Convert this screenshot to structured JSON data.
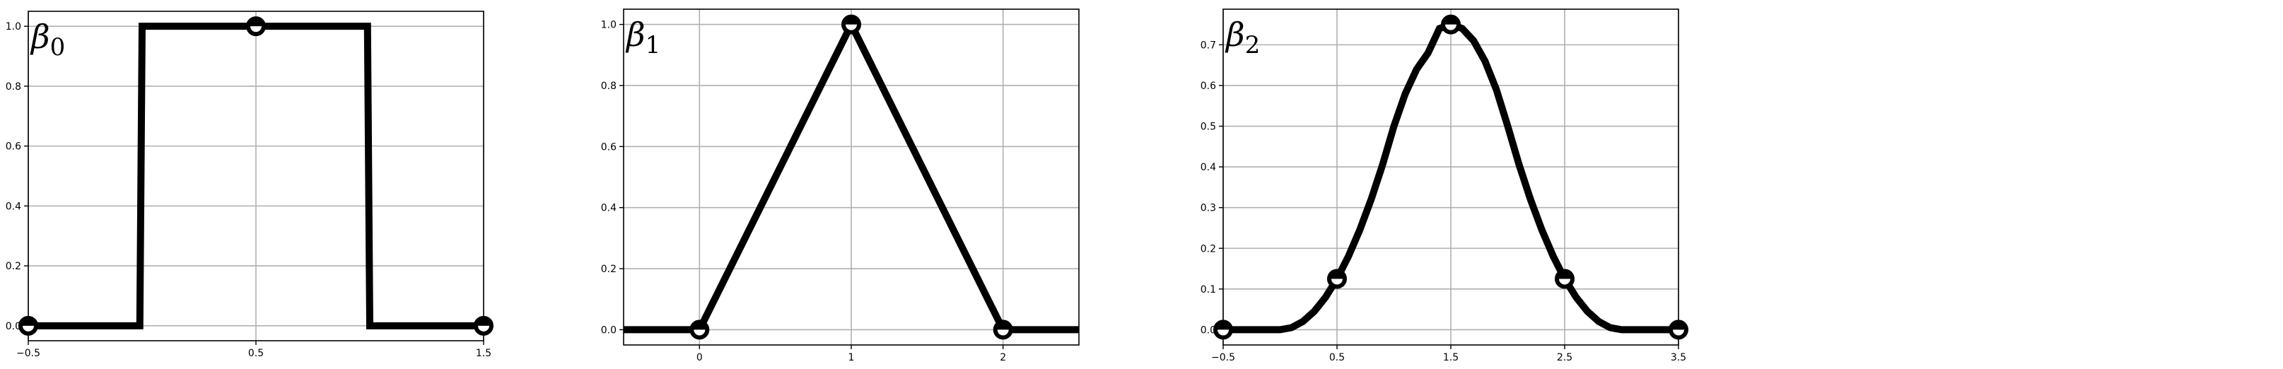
{
  "chart_data": [
    {
      "type": "line",
      "title": "β",
      "title_subscript": "0",
      "title_placement": "top-left",
      "grid": true,
      "xlim": [
        -0.5,
        1.5
      ],
      "ylim": [
        -0.05,
        1.05
      ],
      "xticks": [
        -0.5,
        0.5,
        1.5
      ],
      "xtick_labels": [
        "−0.5",
        "0.5",
        "1.5"
      ],
      "yticks": [
        0.0,
        0.2,
        0.4,
        0.6,
        0.8,
        1.0
      ],
      "ytick_labels": [
        "0.0",
        "0.2",
        "0.4",
        "0.6",
        "0.8",
        "1.0"
      ],
      "line_color": "#000000",
      "series": [
        {
          "x": [
            -0.5,
            -0.01,
            0.0,
            0.99,
            1.0,
            1.5
          ],
          "y": [
            0.0,
            0.0,
            1.0,
            1.0,
            0.0,
            0.0
          ]
        }
      ],
      "markers": {
        "x": [
          -0.5,
          0.5,
          1.5
        ],
        "y": [
          0.0,
          1.0,
          0.0
        ]
      }
    },
    {
      "type": "line",
      "title": "β",
      "title_subscript": "1",
      "title_placement": "top-left",
      "grid": true,
      "xlim": [
        -0.5,
        2.5
      ],
      "ylim": [
        -0.05,
        1.05
      ],
      "xticks": [
        0,
        1,
        2
      ],
      "xtick_labels": [
        "0",
        "1",
        "2"
      ],
      "yticks": [
        0.0,
        0.2,
        0.4,
        0.6,
        0.8,
        1.0
      ],
      "ytick_labels": [
        "0.0",
        "0.2",
        "0.4",
        "0.6",
        "0.8",
        "1.0"
      ],
      "line_color": "#000000",
      "series": [
        {
          "x": [
            -0.5,
            0.0,
            1.0,
            2.0,
            2.5
          ],
          "y": [
            0.0,
            0.0,
            1.0,
            0.0,
            0.0
          ]
        }
      ],
      "markers": {
        "x": [
          0,
          1,
          2
        ],
        "y": [
          0.0,
          1.0,
          0.0
        ]
      }
    },
    {
      "type": "line",
      "title": "β",
      "title_subscript": "2",
      "title_placement": "top-left",
      "grid": true,
      "xlim": [
        -0.5,
        3.5
      ],
      "ylim": [
        -0.0375,
        0.7875
      ],
      "xticks": [
        -0.5,
        0.5,
        1.5,
        2.5,
        3.5
      ],
      "xtick_labels": [
        "−0.5",
        "0.5",
        "1.5",
        "2.5",
        "3.5"
      ],
      "yticks": [
        0.0,
        0.1,
        0.2,
        0.3,
        0.4,
        0.5,
        0.6,
        0.7
      ],
      "ytick_labels": [
        "0.0",
        "0.1",
        "0.2",
        "0.3",
        "0.4",
        "0.5",
        "0.6",
        "0.7"
      ],
      "line_color": "#000000",
      "series": [
        {
          "x": [
            -0.5,
            -0.25,
            0.0,
            0.1,
            0.2,
            0.3,
            0.4,
            0.5,
            0.6,
            0.7,
            0.8,
            0.9,
            1.0,
            1.1,
            1.2,
            1.3,
            1.4,
            1.5,
            1.6,
            1.7,
            1.8,
            1.9,
            2.0,
            2.1,
            2.2,
            2.3,
            2.4,
            2.5,
            2.6,
            2.7,
            2.8,
            2.9,
            3.0,
            3.25,
            3.5
          ],
          "y": [
            0.0,
            0.0,
            0.0,
            0.005,
            0.02,
            0.045,
            0.08,
            0.125,
            0.18,
            0.245,
            0.32,
            0.405,
            0.5,
            0.58,
            0.64,
            0.68,
            0.74,
            0.75,
            0.74,
            0.71,
            0.66,
            0.59,
            0.5,
            0.405,
            0.32,
            0.245,
            0.18,
            0.125,
            0.08,
            0.045,
            0.02,
            0.005,
            0.0,
            0.0,
            0.0
          ]
        }
      ],
      "markers": {
        "x": [
          -0.5,
          0.5,
          1.5,
          2.5,
          3.5
        ],
        "y": [
          0.0,
          0.125,
          0.75,
          0.125,
          0.0
        ]
      }
    }
  ]
}
